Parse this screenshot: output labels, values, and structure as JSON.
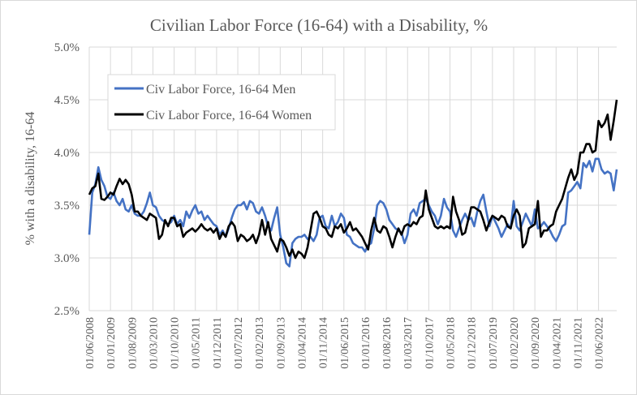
{
  "chart_data": {
    "type": "line",
    "title": "Civilian Labor Force (16-64) with a Disability, %",
    "ylabel": "% with a disability, 16-64",
    "xlabel": "",
    "ylim": [
      2.5,
      5.0
    ],
    "y_ticks": [
      "2.5%",
      "3.0%",
      "3.5%",
      "4.0%",
      "4.5%",
      "5.0%"
    ],
    "x_start": "01/06/2008",
    "x_frequency": "monthly",
    "x_ticks": [
      "01/06/2008",
      "01/01/2009",
      "01/08/2009",
      "01/03/2010",
      "01/10/2010",
      "01/05/2011",
      "01/12/2011",
      "01/07/2012",
      "01/02/2013",
      "01/09/2013",
      "01/04/2014",
      "01/11/2014",
      "01/06/2015",
      "01/01/2016",
      "01/08/2016",
      "01/03/2017",
      "01/10/2017",
      "01/05/2018",
      "01/12/2018",
      "01/07/2019",
      "01/02/2020",
      "01/09/2020",
      "01/04/2021",
      "01/11/2021",
      "01/06/2022"
    ],
    "grid": true,
    "legend": "top-left",
    "series": [
      {
        "name": "Civ Labor Force, 16-64 Men",
        "color": "#4472c4",
        "values": [
          3.22,
          3.62,
          3.7,
          3.86,
          3.74,
          3.68,
          3.58,
          3.56,
          3.62,
          3.54,
          3.5,
          3.56,
          3.46,
          3.44,
          3.5,
          3.42,
          3.4,
          3.4,
          3.44,
          3.52,
          3.62,
          3.5,
          3.48,
          3.4,
          3.36,
          3.34,
          3.32,
          3.34,
          3.4,
          3.32,
          3.36,
          3.3,
          3.44,
          3.38,
          3.45,
          3.5,
          3.42,
          3.44,
          3.36,
          3.4,
          3.36,
          3.32,
          3.3,
          3.22,
          3.26,
          3.2,
          3.28,
          3.38,
          3.46,
          3.5,
          3.5,
          3.53,
          3.46,
          3.54,
          3.52,
          3.44,
          3.42,
          3.48,
          3.4,
          3.3,
          3.26,
          3.38,
          3.48,
          3.22,
          3.1,
          2.95,
          2.92,
          3.14,
          3.18,
          3.2,
          3.2,
          3.22,
          3.18,
          3.2,
          3.16,
          3.22,
          3.38,
          3.4,
          3.3,
          3.28,
          3.4,
          3.3,
          3.34,
          3.42,
          3.38,
          3.22,
          3.2,
          3.14,
          3.12,
          3.1,
          3.1,
          3.06,
          3.12,
          3.14,
          3.28,
          3.5,
          3.54,
          3.52,
          3.46,
          3.36,
          3.32,
          3.28,
          3.26,
          3.24,
          3.14,
          3.22,
          3.42,
          3.46,
          3.4,
          3.52,
          3.54,
          3.56,
          3.5,
          3.44,
          3.4,
          3.32,
          3.4,
          3.56,
          3.48,
          3.44,
          3.26,
          3.2,
          3.28,
          3.36,
          3.42,
          3.36,
          3.38,
          3.3,
          3.44,
          3.54,
          3.6,
          3.44,
          3.3,
          3.4,
          3.34,
          3.28,
          3.2,
          3.26,
          3.32,
          3.28,
          3.54,
          3.3,
          3.26,
          3.34,
          3.42,
          3.36,
          3.3,
          3.46,
          3.28,
          3.3,
          3.34,
          3.3,
          3.26,
          3.2,
          3.16,
          3.22,
          3.3,
          3.32,
          3.62,
          3.64,
          3.68,
          3.72,
          3.66,
          3.9,
          3.86,
          3.92,
          3.82,
          3.94,
          3.94,
          3.84,
          3.8,
          3.82,
          3.8,
          3.64,
          3.84
        ]
      },
      {
        "name": "Civ Labor Force, 16-64 Women",
        "color": "#000000",
        "values": [
          3.6,
          3.66,
          3.68,
          3.8,
          3.56,
          3.55,
          3.58,
          3.62,
          3.6,
          3.68,
          3.75,
          3.7,
          3.74,
          3.7,
          3.6,
          3.44,
          3.44,
          3.4,
          3.38,
          3.36,
          3.42,
          3.4,
          3.38,
          3.18,
          3.22,
          3.36,
          3.3,
          3.38,
          3.38,
          3.3,
          3.32,
          3.2,
          3.24,
          3.26,
          3.28,
          3.25,
          3.28,
          3.32,
          3.28,
          3.26,
          3.28,
          3.24,
          3.28,
          3.18,
          3.24,
          3.2,
          3.3,
          3.34,
          3.3,
          3.16,
          3.22,
          3.2,
          3.16,
          3.18,
          3.22,
          3.14,
          3.22,
          3.36,
          3.22,
          3.34,
          3.18,
          3.12,
          3.06,
          3.18,
          3.16,
          3.1,
          3.02,
          3.08,
          3.0,
          3.06,
          3.04,
          3.0,
          3.1,
          3.26,
          3.42,
          3.44,
          3.38,
          3.3,
          3.28,
          3.22,
          3.2,
          3.3,
          3.28,
          3.32,
          3.24,
          3.28,
          3.34,
          3.26,
          3.28,
          3.24,
          3.2,
          3.14,
          3.08,
          3.26,
          3.38,
          3.26,
          3.24,
          3.3,
          3.28,
          3.2,
          3.1,
          3.2,
          3.28,
          3.22,
          3.3,
          3.32,
          3.3,
          3.34,
          3.32,
          3.38,
          3.4,
          3.64,
          3.46,
          3.38,
          3.3,
          3.28,
          3.3,
          3.28,
          3.3,
          3.28,
          3.58,
          3.44,
          3.36,
          3.22,
          3.24,
          3.36,
          3.48,
          3.48,
          3.46,
          3.44,
          3.36,
          3.26,
          3.34,
          3.4,
          3.38,
          3.36,
          3.4,
          3.38,
          3.3,
          3.28,
          3.4,
          3.46,
          3.4,
          3.1,
          3.14,
          3.28,
          3.3,
          3.32,
          3.54,
          3.2,
          3.26,
          3.26,
          3.3,
          3.32,
          3.44,
          3.5,
          3.56,
          3.66,
          3.76,
          3.84,
          3.74,
          3.8,
          4.0,
          4.0,
          4.08,
          4.08,
          4.0,
          4.02,
          4.3,
          4.24,
          4.28,
          4.36,
          4.12,
          4.3,
          4.5
        ]
      }
    ]
  }
}
